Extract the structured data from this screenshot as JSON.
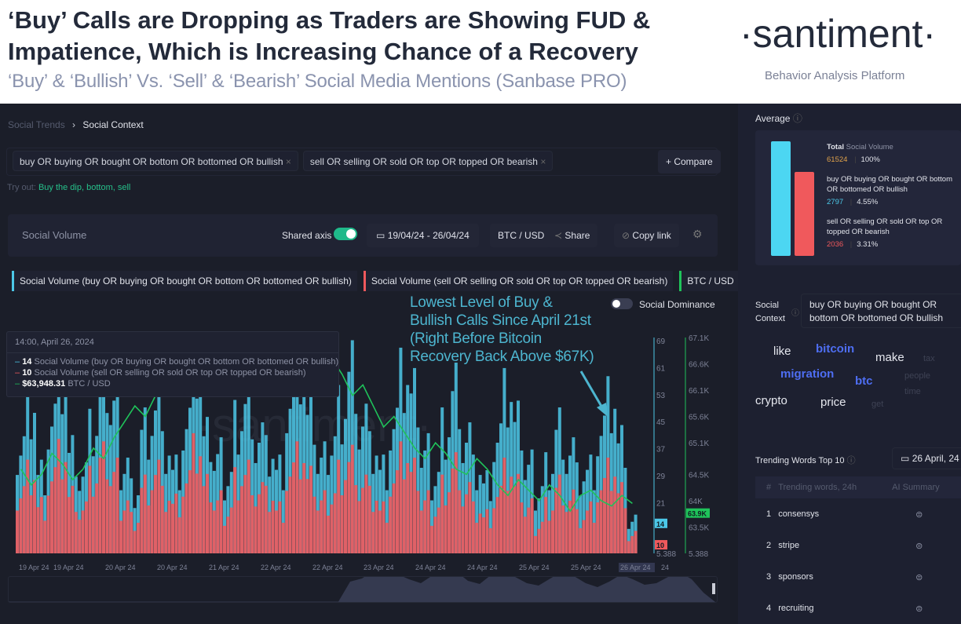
{
  "header": {
    "title_line1": "‘Buy’ Calls are Dropping as Traders are Showing FUD &",
    "title_line2": "Impatience, Which is Increasing Chance of a Recovery",
    "subtitle": "‘Buy’ & ‘Bullish’ Vs. ‘Sell’ & ‘Bearish’ Social Media Mentions (Sanbase PRO)",
    "logo": "·santiment·",
    "logo_sub": "Behavior Analysis Platform"
  },
  "breadcrumb": {
    "parent": "Social Trends",
    "current": "Social Context"
  },
  "queries": [
    "buy OR buying OR bought OR bottom OR bottomed OR bullish",
    "sell OR selling OR sold OR top OR topped OR bearish"
  ],
  "compare_label": "+ Compare",
  "try_out": {
    "label": "Try out:",
    "links": "Buy the dip, bottom, sell"
  },
  "toolbar": {
    "title": "Social Volume",
    "shared_axis": "Shared axis",
    "shared_axis_on": true,
    "date_range": "19/04/24 - 26/04/24",
    "asset": "BTC / USD",
    "share": "Share",
    "copy_link": "Copy link"
  },
  "legend": [
    "Social Volume (buy OR buying OR bought OR bottom OR bottomed OR bullish)",
    "Social Volume (sell OR selling OR sold OR top OR topped OR bearish)",
    "BTC / USD"
  ],
  "social_dominance": {
    "label": "Social Dominance",
    "on": false
  },
  "colors": {
    "buy": "#4cc8e8",
    "sell": "#f0595c",
    "btc": "#1fc35a",
    "annotation": "#4db5cf"
  },
  "annotation": "Lowest Level of Buy &\nBullish Calls Since April 21st\n(Right Before Bitcoin\nRecovery Back Above $67K)",
  "tooltip": {
    "time": "14:00, April 26, 2024",
    "buy_value": "14",
    "buy_label": "Social Volume (buy OR buying OR bought OR bottom OR bottomed OR bullish)",
    "sell_value": "10",
    "sell_label": "Social Volume (sell OR selling OR sold OR top OR topped OR bearish)",
    "btc_value": "$63,948.31",
    "btc_label": "BTC / USD"
  },
  "chart_data": {
    "type": "bar",
    "x_ticks": [
      "19 Apr 24",
      "19 Apr 24",
      "20 Apr 24",
      "20 Apr 24",
      "21 Apr 24",
      "22 Apr 24",
      "22 Apr 24",
      "23 Apr 24",
      "24 Apr 24",
      "24 Apr 24",
      "25 Apr 24",
      "25 Apr 24",
      "26 Apr 24",
      "24"
    ],
    "y_left_ticks": [
      "69",
      "61",
      "53",
      "45",
      "37",
      "29",
      "21",
      "5.388"
    ],
    "y_left_range": [
      5.388,
      69
    ],
    "y_right_ticks": [
      "67.1K",
      "66.6K",
      "66.1K",
      "65.6K",
      "65.1K",
      "64.5K",
      "64K",
      "63.5K",
      "5.388"
    ],
    "y_right_range": [
      63000,
      67100
    ],
    "markers": {
      "buy": "14",
      "sell": "10",
      "btc": "63.9K"
    },
    "series": [
      {
        "name": "Social Volume (buy OR buying OR bought OR bottom OR bottomed OR bullish)",
        "values": [
          38,
          52,
          30,
          45,
          58,
          35,
          28,
          40,
          55,
          48,
          32,
          25,
          44,
          50,
          36,
          30,
          42,
          60,
          38,
          33,
          28,
          46,
          52,
          40,
          35,
          30,
          48,
          58,
          44,
          32,
          38,
          50,
          62,
          45,
          36,
          30,
          42,
          55,
          50,
          34,
          28,
          44,
          56,
          40,
          30,
          26,
          38,
          50,
          42,
          30,
          24,
          32,
          44,
          36,
          28,
          30,
          40,
          48,
          36,
          14
        ]
      },
      {
        "name": "Social Volume (sell OR selling OR sold OR top OR topped OR bearish)",
        "values": [
          24,
          30,
          20,
          28,
          34,
          22,
          18,
          26,
          32,
          28,
          20,
          16,
          26,
          30,
          22,
          20,
          26,
          34,
          24,
          20,
          18,
          28,
          30,
          24,
          22,
          18,
          28,
          32,
          26,
          20,
          22,
          30,
          34,
          26,
          22,
          18,
          26,
          32,
          28,
          20,
          18,
          26,
          32,
          24,
          18,
          16,
          22,
          28,
          24,
          18,
          14,
          20,
          26,
          22,
          16,
          18,
          24,
          28,
          22,
          10
        ]
      },
      {
        "name": "BTC / USD",
        "type": "line",
        "values": [
          64600,
          64300,
          64500,
          64900,
          64700,
          64400,
          64600,
          65000,
          64800,
          65200,
          65500,
          65800,
          65600,
          66000,
          66300,
          66100,
          66500,
          66800,
          66600,
          66400,
          66700,
          66900,
          66600,
          66300,
          66500,
          66800,
          66700,
          66400,
          66200,
          66500,
          66700,
          66400,
          66000,
          66200,
          65800,
          65400,
          65600,
          65300,
          65000,
          64800,
          65100,
          64900,
          64600,
          64500,
          64800,
          64600,
          64300,
          64100,
          64400,
          64200,
          64000,
          64300,
          64100,
          63800,
          64100,
          64200,
          64000,
          63900,
          64100,
          63948
        ]
      }
    ]
  },
  "average": {
    "title": "Average",
    "total_bold": "Total",
    "total_label": "Social Volume",
    "total": "61524",
    "total_pct": "100%",
    "buy_label": "buy OR buying OR bought OR bottom OR bottomed OR bullish",
    "buy": "2797",
    "buy_pct": "4.55%",
    "sell_label": "sell OR selling OR sold OR top OR topped OR bearish",
    "sell": "2036",
    "sell_pct": "3.31%"
  },
  "social_context": {
    "label": "Social Context",
    "query": "buy OR buying OR bought OR bottom OR bottomed OR bullish"
  },
  "word_cloud": [
    "like",
    "bitcoin",
    "make",
    "tax",
    "migration",
    "btc",
    "people",
    "crypto",
    "price",
    "get",
    "time"
  ],
  "trending": {
    "title": "Trending Words Top 10",
    "date": "26 April, 24",
    "headers": [
      "#",
      "Trending words, 24h",
      "AI Summary"
    ],
    "rows": [
      {
        "n": "1",
        "word": "consensys"
      },
      {
        "n": "2",
        "word": "stripe"
      },
      {
        "n": "3",
        "word": "sponsors"
      },
      {
        "n": "4",
        "word": "recruiting"
      }
    ]
  }
}
